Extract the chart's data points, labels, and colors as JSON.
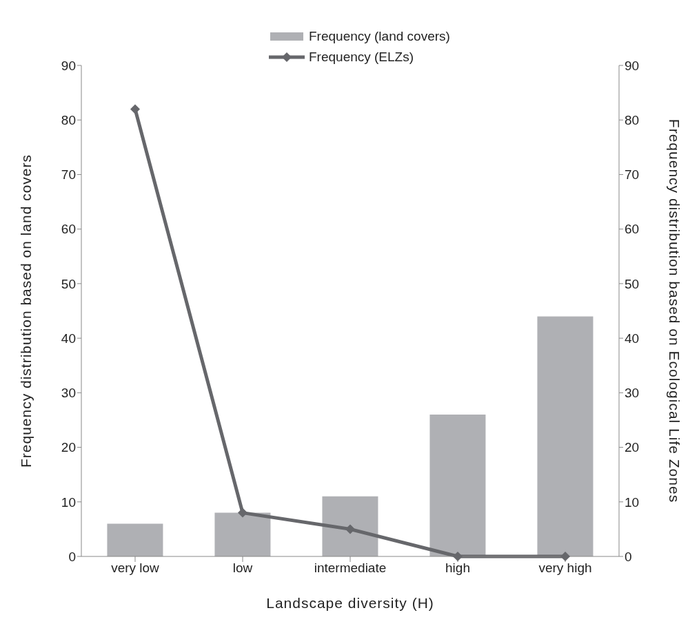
{
  "chart_data": {
    "type": "bar",
    "xlabel": "Landscape diversity (H)",
    "ylabel": "Frequency distribution based on land covers",
    "y2label": "Frequency distribution based on Ecological Life Zones",
    "categories": [
      "very low",
      "low",
      "intermediate",
      "high",
      "very high"
    ],
    "series": [
      {
        "name": "Frequency (land covers)",
        "color": "#afb0b4",
        "values": [
          6,
          8,
          11,
          26,
          44
        ]
      },
      {
        "name": "Frequency (ELZs)",
        "color": "#66676b",
        "type": "line",
        "axis": "y2",
        "marker": "diamond",
        "values": [
          82,
          8,
          5,
          0,
          0
        ]
      }
    ],
    "ylim": [
      0,
      90
    ],
    "yticks": [
      0,
      10,
      20,
      30,
      40,
      50,
      60,
      70,
      80,
      90
    ],
    "y2lim": [
      0,
      90
    ],
    "y2ticks": [
      0,
      10,
      20,
      30,
      40,
      50,
      60,
      70,
      80,
      90
    ],
    "grid": false,
    "legend": "top"
  }
}
